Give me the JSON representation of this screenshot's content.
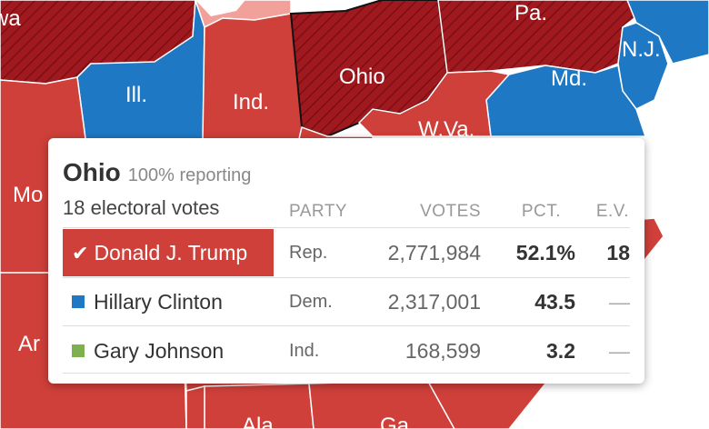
{
  "map": {
    "labels": {
      "wa": "wa",
      "pa": "Pa.",
      "ohio": "Ohio",
      "ill": "Ill.",
      "ind": "Ind.",
      "md": "Md.",
      "nj": "N.J.",
      "wva": "W.Va.",
      "mo": "Mo",
      "ar": "Ar",
      "ala": "Ala.",
      "ga": "Ga."
    },
    "colors": {
      "rep": "#d0403a",
      "rep_dark": "#a0191f",
      "dem": "#1f78c4",
      "light_red": "#f1a19a"
    }
  },
  "popup": {
    "state": "Ohio",
    "reporting": "100% reporting",
    "electoral_votes": "18 electoral votes",
    "columns": {
      "party": "PARTY",
      "votes": "VOTES",
      "pct": "PCT.",
      "ev": "E.V."
    },
    "candidates": [
      {
        "check": "✔",
        "name": "Donald J. Trump",
        "party": "Rep.",
        "votes": "2,771,984",
        "pct": "52.1%",
        "ev": "18",
        "color": "#d0403a",
        "winner": true
      },
      {
        "name": "Hillary Clinton",
        "party": "Dem.",
        "votes": "2,317,001",
        "pct": "43.5",
        "ev": "—",
        "color": "#1f78c4",
        "winner": false
      },
      {
        "name": "Gary Johnson",
        "party": "Ind.",
        "votes": "168,599",
        "pct": "3.2",
        "ev": "—",
        "color": "#7fb04f",
        "winner": false
      }
    ]
  }
}
